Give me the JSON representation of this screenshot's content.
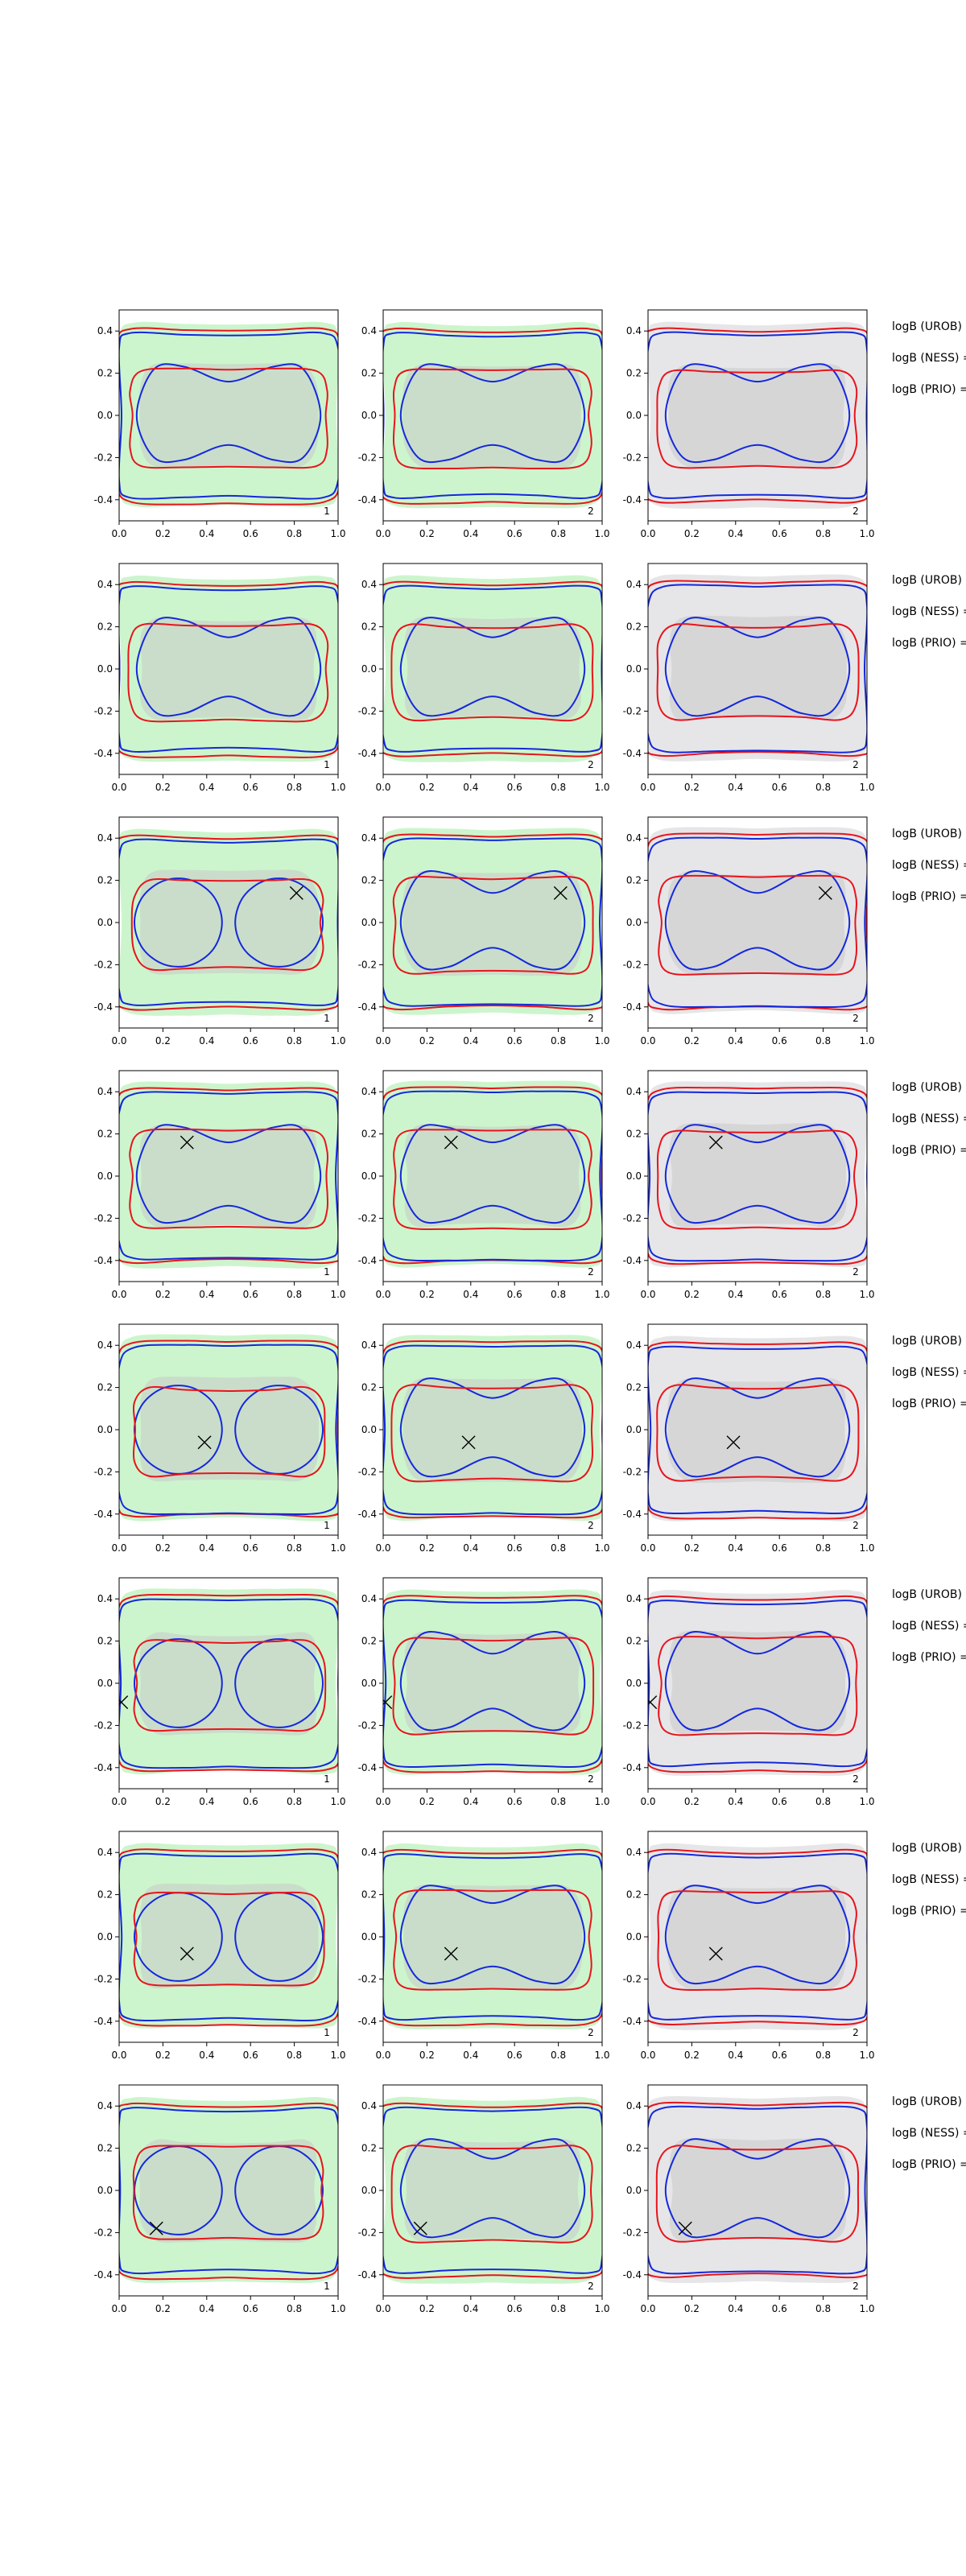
{
  "figure": {
    "title": "",
    "row_labels": [
      "logB (UROB) =",
      "logB (NESS) =",
      "logB (PRIO) ="
    ],
    "colors": {
      "red": "#e8141c",
      "blue": "#1428dc",
      "green": "#cdf5cd",
      "gray": "#c8c8c8",
      "lightgray": "#e6e6e8"
    }
  },
  "chart_data": {
    "type": "contour",
    "grid": "3 columns x 8 rows of small panels",
    "xlim": [
      0,
      1
    ],
    "ylim": [
      -0.5,
      0.5
    ],
    "xticks": [
      "0.0",
      "0.2",
      "0.4",
      "0.6",
      "0.8",
      "1.0"
    ],
    "yticks": [
      "0.4",
      "0.2",
      "0.0",
      "-0.2",
      "-0.4"
    ],
    "panel_index_labels": [
      "1",
      "2",
      "2"
    ],
    "column_backgrounds": [
      "green",
      "green",
      "lightgray"
    ],
    "rows": [
      {
        "marker": null
      },
      {
        "marker": null
      },
      {
        "marker": {
          "x": 0.81,
          "y": 0.14
        }
      },
      {
        "marker": {
          "x": 0.31,
          "y": 0.16
        }
      },
      {
        "marker": {
          "x": 0.39,
          "y": -0.06
        }
      },
      {
        "marker": {
          "x": 0.01,
          "y": -0.09
        }
      },
      {
        "marker": {
          "x": 0.31,
          "y": -0.08
        }
      },
      {
        "marker": {
          "x": 0.17,
          "y": -0.18
        }
      }
    ]
  }
}
